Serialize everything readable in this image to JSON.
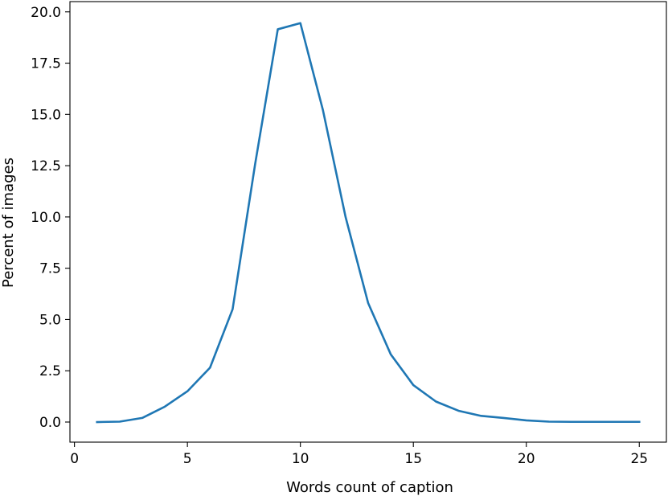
{
  "chart_data": {
    "type": "line",
    "title": "",
    "xlabel": "Words count of caption",
    "ylabel": "Percent of images",
    "xlim": [
      -0.2,
      26.2
    ],
    "ylim": [
      -0.98,
      20.5
    ],
    "grid": false,
    "x_ticks": [
      0,
      5,
      10,
      15,
      20,
      25
    ],
    "x_tick_labels": [
      "0",
      "5",
      "10",
      "15",
      "20",
      "25"
    ],
    "y_ticks": [
      0,
      2.5,
      5,
      7.5,
      10,
      12.5,
      15,
      17.5,
      20
    ],
    "y_tick_labels": [
      "0.0",
      "2.5",
      "5.0",
      "7.5",
      "10.0",
      "12.5",
      "15.0",
      "17.5",
      "20.0"
    ],
    "series": [
      {
        "color": "#1f77b4",
        "x": [
          1,
          2,
          3,
          4,
          5,
          6,
          7,
          8,
          9,
          10,
          11,
          12,
          13,
          14,
          15,
          16,
          17,
          18,
          19,
          20,
          21,
          22,
          23,
          24,
          25
        ],
        "y": [
          0.0,
          0.02,
          0.2,
          0.75,
          1.5,
          2.65,
          5.5,
          12.6,
          19.15,
          19.45,
          15.2,
          10.0,
          5.8,
          3.3,
          1.8,
          1.0,
          0.55,
          0.3,
          0.2,
          0.08,
          0.02,
          0.01,
          0.01,
          0.01,
          0.01
        ]
      }
    ]
  }
}
